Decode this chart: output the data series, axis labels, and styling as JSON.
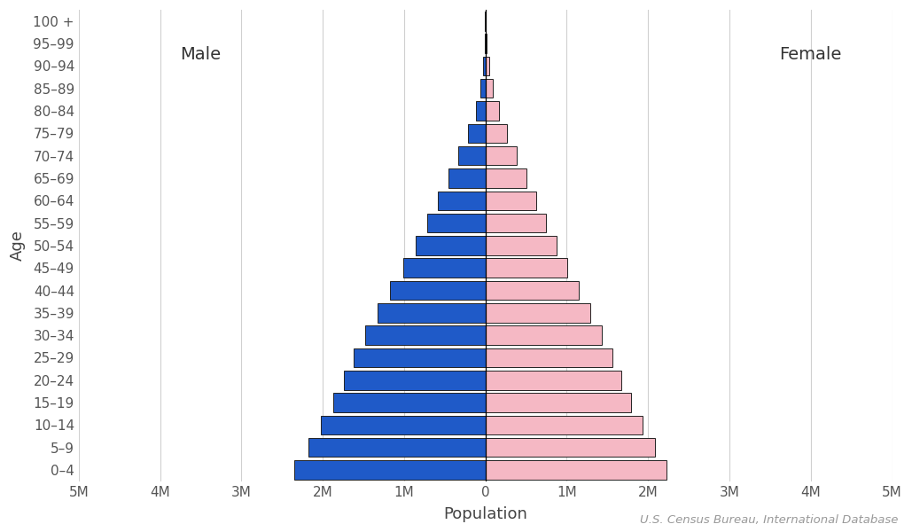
{
  "age_groups": [
    "0–4",
    "5–9",
    "10–14",
    "15–19",
    "20–24",
    "25–29",
    "30–34",
    "35–39",
    "40–44",
    "45–49",
    "50–54",
    "55–59",
    "60–64",
    "65–69",
    "70–74",
    "75–79",
    "80–84",
    "85–89",
    "90–94",
    "95–99",
    "100 +"
  ],
  "male": [
    2350000,
    2180000,
    2020000,
    1870000,
    1740000,
    1620000,
    1480000,
    1330000,
    1170000,
    1010000,
    860000,
    720000,
    580000,
    450000,
    330000,
    210000,
    120000,
    60000,
    25000,
    8000,
    2000
  ],
  "female": [
    2230000,
    2080000,
    1930000,
    1790000,
    1670000,
    1560000,
    1430000,
    1290000,
    1150000,
    1010000,
    870000,
    740000,
    620000,
    500000,
    385000,
    265000,
    170000,
    95000,
    42000,
    14000,
    3500
  ],
  "male_color": "#1f5ac8",
  "female_color": "#f5b8c4",
  "male_label": "Male",
  "female_label": "Female",
  "xlabel": "Population",
  "ylabel": "Age",
  "xlim": 5000000,
  "tick_vals": [
    -5000000,
    -4000000,
    -3000000,
    -2000000,
    -1000000,
    0,
    1000000,
    2000000,
    3000000,
    4000000,
    5000000
  ],
  "tick_labels": [
    "5M",
    "4M",
    "3M",
    "2M",
    "1M",
    "0",
    "1M",
    "2M",
    "3M",
    "4M",
    "5M"
  ],
  "source_text": "U.S. Census Bureau, International Database",
  "background_color": "#ffffff",
  "grid_color": "#d0d0d0",
  "bar_edge_color": "#222222",
  "bar_linewidth": 0.7,
  "bar_height": 0.85,
  "label_fontsize": 13,
  "tick_fontsize": 11,
  "annot_fontsize": 14,
  "source_fontsize": 9.5
}
